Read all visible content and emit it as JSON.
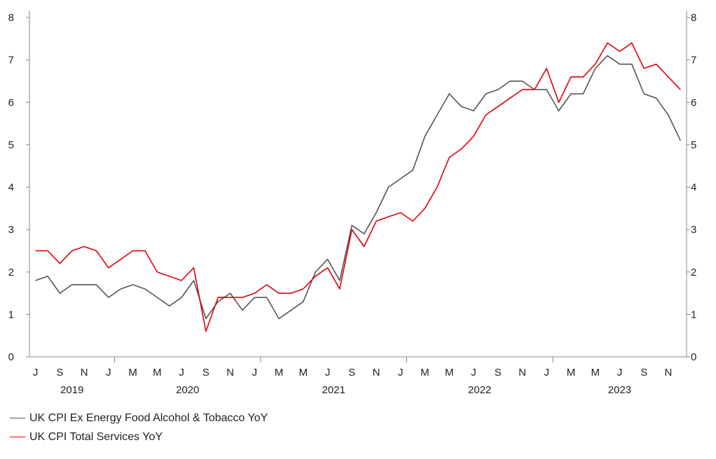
{
  "chart_data": {
    "type": "line",
    "x": [
      "2019-06",
      "2019-07",
      "2019-08",
      "2019-09",
      "2019-10",
      "2019-11",
      "2019-12",
      "2020-01",
      "2020-02",
      "2020-03",
      "2020-04",
      "2020-05",
      "2020-06",
      "2020-07",
      "2020-08",
      "2020-09",
      "2020-10",
      "2020-11",
      "2020-12",
      "2021-01",
      "2021-02",
      "2021-03",
      "2021-04",
      "2021-05",
      "2021-06",
      "2021-07",
      "2021-08",
      "2021-09",
      "2021-10",
      "2021-11",
      "2021-12",
      "2022-01",
      "2022-02",
      "2022-03",
      "2022-04",
      "2022-05",
      "2022-06",
      "2022-07",
      "2022-08",
      "2022-09",
      "2022-10",
      "2022-11",
      "2022-12",
      "2023-01",
      "2023-02",
      "2023-03",
      "2023-04",
      "2023-05",
      "2023-06",
      "2023-07",
      "2023-08",
      "2023-09",
      "2023-10",
      "2023-11"
    ],
    "month_ticks": [
      "J",
      "S",
      "N",
      "J",
      "M",
      "M",
      "J",
      "S",
      "N",
      "J",
      "M",
      "M",
      "J",
      "S",
      "N",
      "J",
      "M",
      "M",
      "J",
      "S",
      "N",
      "J",
      "M",
      "M",
      "J",
      "S",
      "N"
    ],
    "year_labels": [
      "2019",
      "2020",
      "2021",
      "2022",
      "2023"
    ],
    "yticks": [
      "0",
      "1",
      "2",
      "3",
      "4",
      "5",
      "6",
      "7",
      "8"
    ],
    "ylim": [
      0,
      8
    ],
    "series": [
      {
        "name": "UK CPI Ex Energy Food Alcohol & Tobacco YoY",
        "color": "#555555",
        "values": [
          1.8,
          1.9,
          1.5,
          1.7,
          1.7,
          1.7,
          1.4,
          1.6,
          1.7,
          1.6,
          1.4,
          1.2,
          1.4,
          1.8,
          0.9,
          1.3,
          1.5,
          1.1,
          1.4,
          1.4,
          0.9,
          1.1,
          1.3,
          2.0,
          2.3,
          1.8,
          3.1,
          2.9,
          3.4,
          4.0,
          4.2,
          4.4,
          5.2,
          5.7,
          6.2,
          5.9,
          5.8,
          6.2,
          6.3,
          6.5,
          6.5,
          6.3,
          6.3,
          5.8,
          6.2,
          6.2,
          6.8,
          7.1,
          6.9,
          6.9,
          6.2,
          6.1,
          5.7,
          5.1
        ]
      },
      {
        "name": "UK CPI Total Services YoY",
        "color": "#e0000a",
        "values": [
          2.5,
          2.5,
          2.2,
          2.5,
          2.6,
          2.5,
          2.1,
          2.3,
          2.5,
          2.5,
          2.0,
          1.9,
          1.8,
          2.1,
          0.6,
          1.4,
          1.4,
          1.4,
          1.5,
          1.7,
          1.5,
          1.5,
          1.6,
          1.9,
          2.1,
          1.6,
          3.0,
          2.6,
          3.2,
          3.3,
          3.4,
          3.2,
          3.5,
          4.0,
          4.7,
          4.9,
          5.2,
          5.7,
          5.9,
          6.1,
          6.3,
          6.3,
          6.8,
          6.0,
          6.6,
          6.6,
          6.9,
          7.4,
          7.2,
          7.4,
          6.8,
          6.9,
          6.6,
          6.3
        ]
      }
    ]
  },
  "legend": {
    "items": [
      {
        "label": "UK CPI Ex Energy Food Alcohol & Tobacco YoY",
        "color": "#555555"
      },
      {
        "label": "UK CPI Total Services YoY",
        "color": "#e0000a"
      }
    ]
  }
}
